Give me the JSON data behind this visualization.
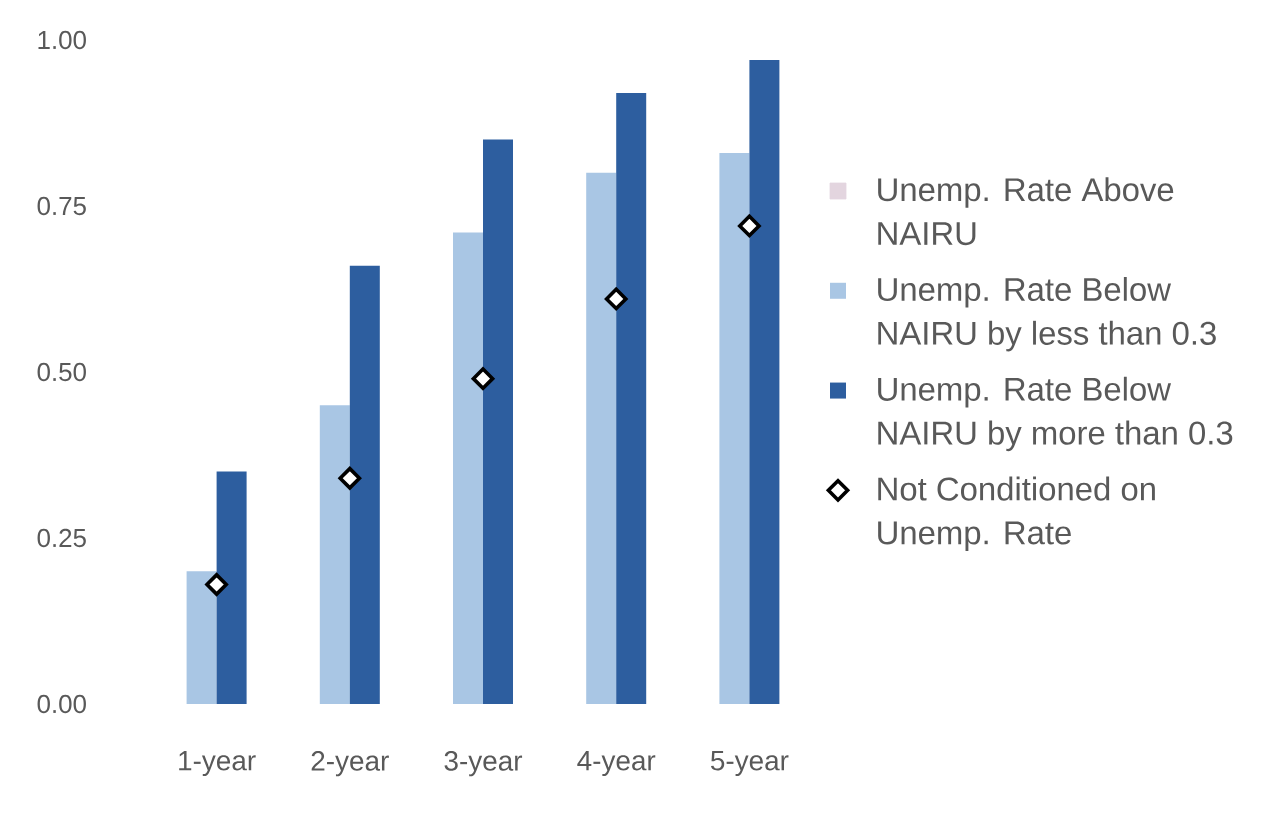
{
  "chart_data": {
    "type": "bar",
    "categories": [
      "1-year",
      "2-year",
      "3-year",
      "4-year",
      "5-year"
    ],
    "series": [
      {
        "name": "Unemp. Rate Above NAIRU",
        "color": "#e3d5df",
        "values": [
          null,
          null,
          null,
          null,
          null
        ]
      },
      {
        "name": "Unemp. Rate Below NAIRU by less than 0.3",
        "color": "#a9c6e4",
        "values": [
          0.2,
          0.45,
          0.71,
          0.8,
          0.83
        ]
      },
      {
        "name": "Unemp. Rate Below NAIRU by more than 0.3",
        "color": "#2d5e9f",
        "values": [
          0.35,
          0.66,
          0.85,
          0.92,
          0.97
        ]
      },
      {
        "name": "Not Conditioned on Unemp. Rate",
        "type": "scatter",
        "marker": "diamond",
        "color": "#000000",
        "values": [
          0.18,
          0.34,
          0.49,
          0.61,
          0.72
        ]
      }
    ],
    "ylim": [
      0,
      1
    ],
    "yticks": [
      {
        "value": 0,
        "label": "0.00"
      },
      {
        "value": 0.25,
        "label": "0.25"
      },
      {
        "value": 0.5,
        "label": "0.50"
      },
      {
        "value": 0.75,
        "label": "0.75"
      },
      {
        "value": 1,
        "label": "1.00"
      }
    ],
    "legend": "right"
  }
}
